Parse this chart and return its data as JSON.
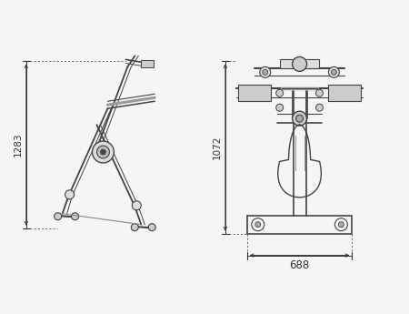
{
  "bg_color": "#f5f5f5",
  "line_color": "#444444",
  "dim_color": "#333333",
  "dim_1283": "1283",
  "dim_1072": "1072",
  "dim_688": "688",
  "figsize": [
    4.5,
    3.45
  ],
  "dpi": 100
}
